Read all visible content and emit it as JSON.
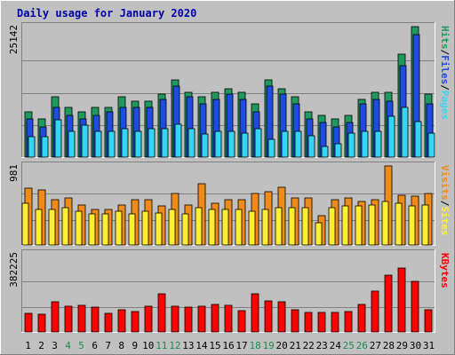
{
  "chart_data": {
    "type": "bar",
    "title": "Daily usage for January 2020",
    "categories": [
      "1",
      "2",
      "3",
      "4",
      "5",
      "6",
      "7",
      "8",
      "9",
      "10",
      "11",
      "12",
      "13",
      "14",
      "15",
      "16",
      "17",
      "18",
      "19",
      "20",
      "21",
      "22",
      "23",
      "24",
      "25",
      "26",
      "27",
      "28",
      "29",
      "30",
      "31"
    ],
    "weekend_days": [
      "4",
      "5",
      "11",
      "12",
      "18",
      "19",
      "25",
      "26"
    ],
    "panels": [
      {
        "key": "hits",
        "ymax_label": "25142",
        "ylim": [
          0,
          25142
        ],
        "side_labels": [
          "Pages",
          "/",
          "Files",
          "/",
          "Hits"
        ],
        "series": [
          {
            "name": "Hits",
            "color": "#1f9a5c",
            "values": [
              8700,
              7300,
              11700,
              9600,
              8700,
              9600,
              9600,
              11700,
              10700,
              10700,
              12200,
              14800,
              12500,
              11700,
              12500,
              13100,
              12500,
              10200,
              14800,
              13100,
              11700,
              8700,
              8000,
              7300,
              8000,
              11100,
              12500,
              12500,
              19900,
              25142,
              12200
            ]
          },
          {
            "name": "Files",
            "color": "#1e4be0",
            "values": [
              7300,
              5900,
              9600,
              8000,
              7300,
              8000,
              8700,
              9600,
              9600,
              9600,
              11100,
              13600,
              11700,
              10200,
              11100,
              12200,
              11100,
              8700,
              13600,
              12200,
              10200,
              7300,
              6600,
              5900,
              6600,
              10200,
              11100,
              10700,
              17600,
              23600,
              10200
            ]
          },
          {
            "name": "Pages",
            "color": "#33d6f5",
            "values": [
              3900,
              4000,
              7200,
              5000,
              6100,
              5000,
              5000,
              5500,
              5000,
              5500,
              5500,
              6300,
              5500,
              4400,
              5000,
              5000,
              4700,
              5500,
              3400,
              5000,
              5000,
              4100,
              2000,
              2600,
              4600,
              5000,
              5000,
              7900,
              9500,
              6800,
              4600
            ]
          }
        ]
      },
      {
        "key": "visits",
        "ymax_label": "981",
        "ylim": [
          0,
          981
        ],
        "side_labels": [
          "Sites",
          "/",
          "Visits"
        ],
        "series": [
          {
            "name": "Visits",
            "color": "#f08a18",
            "values": [
              700,
              681,
              561,
              581,
              501,
              441,
              441,
              501,
              561,
              561,
              481,
              641,
              501,
              761,
              521,
              561,
              561,
              641,
              661,
              721,
              581,
              581,
              361,
              561,
              581,
              541,
              561,
              981,
              621,
              601,
              641
            ]
          },
          {
            "name": "Sites",
            "color": "#ffee33",
            "values": [
              521,
              441,
              441,
              461,
              421,
              381,
              381,
              421,
              381,
              421,
              401,
              441,
              381,
              461,
              441,
              441,
              441,
              421,
              441,
              461,
              461,
              461,
              281,
              461,
              481,
              481,
              501,
              541,
              521,
              481,
              501
            ]
          }
        ]
      },
      {
        "key": "kbytes",
        "ymax_label": "382225",
        "ylim": [
          0,
          382225
        ],
        "side_labels": [
          "KBytes"
        ],
        "series": [
          {
            "name": "KBytes",
            "color": "#ff0000",
            "values": [
              91000,
              86000,
              148000,
              125000,
              131000,
              120000,
              91000,
              108000,
              102000,
              128000,
              187000,
              125000,
              123000,
              125000,
              136000,
              131000,
              105000,
              188000,
              153000,
              148000,
              109000,
              97000,
              96000,
              97000,
              102000,
              134000,
              198000,
              278000,
              313000,
              247000,
              110000
            ]
          }
        ]
      }
    ]
  }
}
